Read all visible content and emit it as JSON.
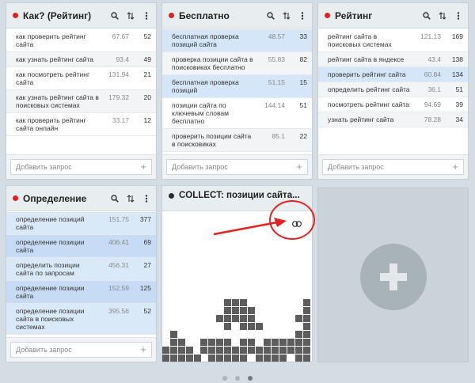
{
  "cards": [
    {
      "title": "Как? (Рейтинг)",
      "rows": [
        {
          "q": "как проверить рейтинг сайта",
          "v": "67.67",
          "n": "52",
          "style": ""
        },
        {
          "q": "как узнать рейтинг сайта",
          "v": "93.4",
          "n": "49",
          "style": "alt"
        },
        {
          "q": "как посмотреть рейтинг сайта",
          "v": "131.94",
          "n": "21",
          "style": ""
        },
        {
          "q": "как узнать рейтинг сайта в поисковых системах",
          "v": "179.32",
          "n": "20",
          "style": "alt"
        },
        {
          "q": "как проверить рейтинг сайта онлайн",
          "v": "33.17",
          "n": "12",
          "style": ""
        }
      ],
      "add_placeholder": "Добавить запрос"
    },
    {
      "title": "Бесплатно",
      "rows": [
        {
          "q": "бесплатная проверка позиций сайта",
          "v": "48.57",
          "n": "33",
          "style": "hl"
        },
        {
          "q": "проверка позиции сайта в поисковиках бесплатно",
          "v": "55.83",
          "n": "82",
          "style": "alt"
        },
        {
          "q": "бесплатная проверка позиций",
          "v": "51.15",
          "n": "15",
          "style": "hl"
        },
        {
          "q": "позиции сайта по ключевым словам бесплатно",
          "v": "144.14",
          "n": "51",
          "style": ""
        },
        {
          "q": "проверить позиции сайта в поисковиках",
          "v": "85.1",
          "n": "22",
          "style": "alt"
        }
      ],
      "add_placeholder": "Добавить запрос"
    },
    {
      "title": "Рейтинг",
      "rows": [
        {
          "q": "рейтинг сайта в поисковых системах",
          "v": "121.13",
          "n": "169",
          "style": ""
        },
        {
          "q": "рейтинг сайта в яндексе",
          "v": "43.4",
          "n": "138",
          "style": "alt"
        },
        {
          "q": "проверить рейтинг сайта",
          "v": "60.84",
          "n": "134",
          "style": "hl"
        },
        {
          "q": "определить рейтинг сайта",
          "v": "36.1",
          "n": "51",
          "style": "alt"
        },
        {
          "q": "посмотреть рейтинг сайта",
          "v": "94.69",
          "n": "39",
          "style": ""
        },
        {
          "q": "узнать рейтинг сайта",
          "v": "78.28",
          "n": "34",
          "style": "alt"
        }
      ],
      "add_placeholder": "Добавить запрос"
    },
    {
      "title": "Определение",
      "rows": [
        {
          "q": "определение позиций сайта",
          "v": "151.75",
          "n": "377",
          "style": "hl"
        },
        {
          "q": "определение позиции сайта",
          "v": "406.41",
          "n": "69",
          "style": "hl2"
        },
        {
          "q": "определить позиции сайта по запросам",
          "v": "456.31",
          "n": "27",
          "style": "hl"
        },
        {
          "q": "определение позиции сайта",
          "v": "152.59",
          "n": "125",
          "style": "hl2"
        },
        {
          "q": "определение позиции сайта в поисковых системах",
          "v": "395.56",
          "n": "52",
          "style": "hl"
        }
      ],
      "add_placeholder": "Добавить запрос"
    }
  ],
  "collect": {
    "title": "COLLECT: позиции сайта..."
  },
  "icons": {
    "search": "search-icon",
    "sort": "sort-icon",
    "menu": "more-vertical-icon",
    "link": "link-icon",
    "add": "plus-icon"
  },
  "colors": {
    "status_dot": "#e02020",
    "annotation": "#e52222",
    "highlight_row": "#d4e6f8"
  },
  "pager": {
    "pages": 3,
    "active": 3
  }
}
